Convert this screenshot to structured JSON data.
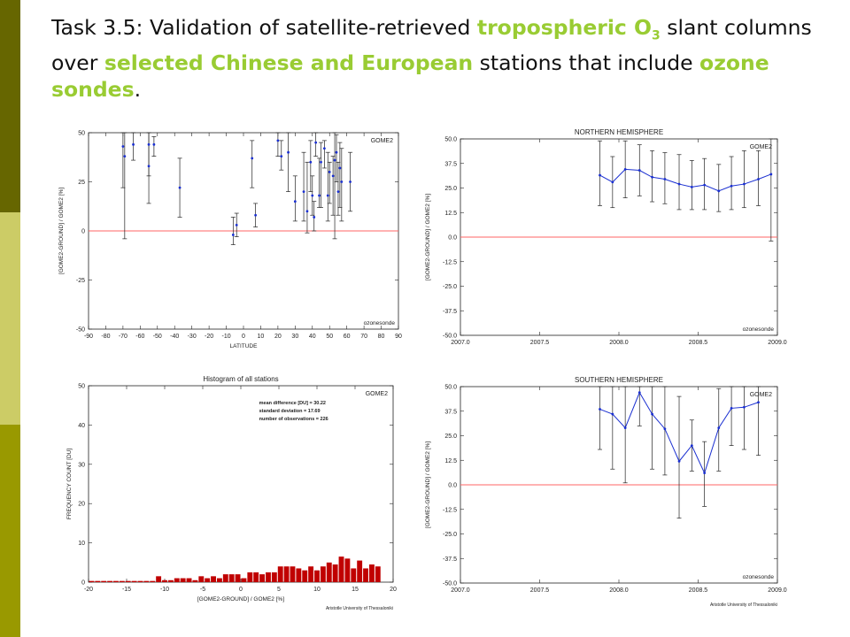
{
  "colors": {
    "band_top": "#666600",
    "band_mid": "#cccc66",
    "band_low": "#999900",
    "highlight": "#99cc33",
    "zero_line": "#ff6666",
    "series_blue": "#1a2fd1",
    "bar_red": "#c00000"
  },
  "header": {
    "part1": "Task 3.5: Validation of satellite-retrieved ",
    "hl1": "tropospheric O",
    "hl1_sub": "3",
    "part2": " slant columns over ",
    "hl2": "selected Chinese and European",
    "part3": " stations that include ",
    "hl3": "ozone sondes",
    "part4": "."
  },
  "chart_data": [
    {
      "type": "scatter",
      "title": "",
      "xlabel": "LATITUDE",
      "ylabel": "[GOME2-GROUND] / GOME2  [%]",
      "xlim": [
        -90,
        90
      ],
      "ylim": [
        -50,
        50
      ],
      "xticks": [
        -90,
        -80,
        -70,
        -60,
        -50,
        -40,
        -30,
        -20,
        -10,
        0,
        10,
        20,
        30,
        40,
        50,
        60,
        70,
        80,
        90
      ],
      "yticks": [
        -50,
        -25,
        0,
        25,
        50
      ],
      "corner_label": "GOME2",
      "footer_label": "ozonesonde",
      "points": [
        {
          "x": -70,
          "y": 43,
          "lo": 22,
          "hi": 55
        },
        {
          "x": -69,
          "y": 38,
          "lo": -4,
          "hi": 55
        },
        {
          "x": -64,
          "y": 44,
          "lo": 36,
          "hi": 52
        },
        {
          "x": -55,
          "y": 33,
          "lo": 14,
          "hi": 55
        },
        {
          "x": -55,
          "y": 44,
          "lo": 28,
          "hi": 55
        },
        {
          "x": -52,
          "y": 44,
          "lo": 38,
          "hi": 48
        },
        {
          "x": -37,
          "y": 22,
          "lo": 7,
          "hi": 37
        },
        {
          "x": -6,
          "y": -2,
          "lo": -7,
          "hi": 7
        },
        {
          "x": -4,
          "y": 3,
          "lo": -3,
          "hi": 9
        },
        {
          "x": 5,
          "y": 37,
          "lo": 22,
          "hi": 46
        },
        {
          "x": 7,
          "y": 8,
          "lo": 2,
          "hi": 14
        },
        {
          "x": 20,
          "y": 46,
          "lo": 38,
          "hi": 50
        },
        {
          "x": 22,
          "y": 38,
          "lo": 31,
          "hi": 46
        },
        {
          "x": 26,
          "y": 40,
          "lo": 20,
          "hi": 52
        },
        {
          "x": 30,
          "y": 15,
          "lo": 5,
          "hi": 28
        },
        {
          "x": 35,
          "y": 20,
          "lo": 5,
          "hi": 40
        },
        {
          "x": 37,
          "y": 10,
          "lo": -1,
          "hi": 35
        },
        {
          "x": 39,
          "y": 35,
          "lo": 20,
          "hi": 46
        },
        {
          "x": 40,
          "y": 18,
          "lo": 8,
          "hi": 28
        },
        {
          "x": 41,
          "y": 7,
          "lo": 0,
          "hi": 15
        },
        {
          "x": 42,
          "y": 45,
          "lo": 38,
          "hi": 53
        },
        {
          "x": 44,
          "y": 18,
          "lo": 12,
          "hi": 37
        },
        {
          "x": 45,
          "y": 35,
          "lo": 12,
          "hi": 45
        },
        {
          "x": 47,
          "y": 42,
          "lo": 32,
          "hi": 46
        },
        {
          "x": 49,
          "y": 18,
          "lo": 5,
          "hi": 40
        },
        {
          "x": 50,
          "y": 30,
          "lo": 14,
          "hi": 35
        },
        {
          "x": 52,
          "y": 28,
          "lo": 8,
          "hi": 38
        },
        {
          "x": 53,
          "y": 36,
          "lo": -4,
          "hi": 52
        },
        {
          "x": 54,
          "y": 40,
          "lo": 25,
          "hi": 49
        },
        {
          "x": 55,
          "y": 20,
          "lo": 8,
          "hi": 35
        },
        {
          "x": 56,
          "y": 32,
          "lo": 12,
          "hi": 45
        },
        {
          "x": 57,
          "y": 25,
          "lo": 5,
          "hi": 42
        },
        {
          "x": 62,
          "y": 25,
          "lo": 10,
          "hi": 40
        }
      ]
    },
    {
      "type": "line",
      "title": "NORTHERN HEMISPHERE",
      "xlabel": "",
      "ylabel": "[GOME2-GROUND] / GOME2  [%]",
      "xlim": [
        2007,
        2009
      ],
      "ylim": [
        -50,
        50
      ],
      "xticks": [
        "2007.0",
        "2007.5",
        "2008.0",
        "2008.5",
        "2009.0"
      ],
      "yticks": [
        "50.0",
        "37.5",
        "25.0",
        "12.5",
        "0.0",
        "-12.5",
        "-25.0",
        "-37.5",
        "-50.0"
      ],
      "corner_label": "GOME2",
      "footer_label": "ozonesonde",
      "points": [
        {
          "x": 2007.88,
          "y": 31.5,
          "lo": 16,
          "hi": 49
        },
        {
          "x": 2007.96,
          "y": 28,
          "lo": 15,
          "hi": 41
        },
        {
          "x": 2008.04,
          "y": 34.5,
          "lo": 20,
          "hi": 49
        },
        {
          "x": 2008.13,
          "y": 34,
          "lo": 21,
          "hi": 47
        },
        {
          "x": 2008.21,
          "y": 30.5,
          "lo": 18,
          "hi": 44
        },
        {
          "x": 2008.29,
          "y": 29.5,
          "lo": 17,
          "hi": 43
        },
        {
          "x": 2008.38,
          "y": 27,
          "lo": 14,
          "hi": 42
        },
        {
          "x": 2008.46,
          "y": 25.5,
          "lo": 14,
          "hi": 39
        },
        {
          "x": 2008.54,
          "y": 26.5,
          "lo": 14,
          "hi": 40
        },
        {
          "x": 2008.63,
          "y": 23.5,
          "lo": 13,
          "hi": 37
        },
        {
          "x": 2008.71,
          "y": 26,
          "lo": 14,
          "hi": 41
        },
        {
          "x": 2008.79,
          "y": 27,
          "lo": 15,
          "hi": 44
        },
        {
          "x": 2008.88,
          "y": 29.5,
          "lo": 16,
          "hi": 44
        },
        {
          "x": 2008.96,
          "y": 32,
          "lo": -2,
          "hi": 50
        }
      ]
    },
    {
      "type": "bar",
      "title": "Histogram of all stations",
      "xlabel": "[GOME2-GROUND] / GOME2  [%]",
      "ylabel": "FREQUENCY COUNT [DU]",
      "xlim": [
        -20,
        20
      ],
      "ylim": [
        0,
        50
      ],
      "xticks": [
        -20,
        -15,
        -10,
        -5,
        0,
        5,
        10,
        15,
        20
      ],
      "yticks": [
        0,
        10,
        20,
        30,
        40,
        50
      ],
      "corner_label": "GOME2",
      "stats": [
        "mean difference [DU] =   30.22",
        "standard deviation  =   17.69",
        "number of observations =   226"
      ],
      "footer_label": "Aristotle University of Thessaloniki",
      "bin_width": 0.8,
      "bins": [
        {
          "x": -19.6,
          "v": 0.3
        },
        {
          "x": -18.8,
          "v": 0.3
        },
        {
          "x": -18.0,
          "v": 0.3
        },
        {
          "x": -17.2,
          "v": 0.3
        },
        {
          "x": -16.4,
          "v": 0.3
        },
        {
          "x": -15.6,
          "v": 0.3
        },
        {
          "x": -14.8,
          "v": 0.3
        },
        {
          "x": -14.0,
          "v": 0.3
        },
        {
          "x": -13.2,
          "v": 0.3
        },
        {
          "x": -12.4,
          "v": 0.3
        },
        {
          "x": -11.6,
          "v": 0.3
        },
        {
          "x": -10.8,
          "v": 1.5
        },
        {
          "x": -10.0,
          "v": 0.5
        },
        {
          "x": -9.2,
          "v": 0.5
        },
        {
          "x": -8.4,
          "v": 1
        },
        {
          "x": -7.6,
          "v": 1
        },
        {
          "x": -6.8,
          "v": 1
        },
        {
          "x": -6.0,
          "v": 0.5
        },
        {
          "x": -5.2,
          "v": 1.5
        },
        {
          "x": -4.4,
          "v": 1
        },
        {
          "x": -3.6,
          "v": 1.5
        },
        {
          "x": -2.8,
          "v": 1
        },
        {
          "x": -2.0,
          "v": 2
        },
        {
          "x": -1.2,
          "v": 2
        },
        {
          "x": -0.4,
          "v": 2
        },
        {
          "x": 0.4,
          "v": 1
        },
        {
          "x": 1.2,
          "v": 2.5
        },
        {
          "x": 2.0,
          "v": 2.5
        },
        {
          "x": 2.8,
          "v": 2
        },
        {
          "x": 3.6,
          "v": 2.5
        },
        {
          "x": 4.4,
          "v": 2.5
        },
        {
          "x": 5.2,
          "v": 4
        },
        {
          "x": 6.0,
          "v": 4
        },
        {
          "x": 6.8,
          "v": 4
        },
        {
          "x": 7.6,
          "v": 3.5
        },
        {
          "x": 8.4,
          "v": 3
        },
        {
          "x": 9.2,
          "v": 4
        },
        {
          "x": 10.0,
          "v": 3
        },
        {
          "x": 10.8,
          "v": 4
        },
        {
          "x": 11.6,
          "v": 5
        },
        {
          "x": 12.4,
          "v": 4.5
        },
        {
          "x": 13.2,
          "v": 6.5
        },
        {
          "x": 14.0,
          "v": 6
        },
        {
          "x": 14.8,
          "v": 3.5
        },
        {
          "x": 15.6,
          "v": 5.5
        },
        {
          "x": 16.4,
          "v": 3.5
        },
        {
          "x": 17.2,
          "v": 4.5
        },
        {
          "x": 18.0,
          "v": 4
        }
      ]
    },
    {
      "type": "line",
      "title": "SOUTHERN HEMISPHERE",
      "xlabel": "",
      "ylabel": "[GOME2-GROUND] / GOME2  [%]",
      "xlim": [
        2007,
        2009
      ],
      "ylim": [
        -50,
        50
      ],
      "xticks": [
        "2007.0",
        "2007.5",
        "2008.0",
        "2008.5",
        "2009.0"
      ],
      "yticks": [
        "50.0",
        "37.5",
        "25.0",
        "12.5",
        "0.0",
        "-12.5",
        "-25.0",
        "-37.5",
        "-50.0"
      ],
      "corner_label": "GOME2",
      "footer_label": "ozonesonde",
      "bottom_note": "Aristotle University of Thessaloniki",
      "points": [
        {
          "x": 2007.88,
          "y": 38.5,
          "lo": 18,
          "hi": 50
        },
        {
          "x": 2007.96,
          "y": 36,
          "lo": 8,
          "hi": 50
        },
        {
          "x": 2008.04,
          "y": 29,
          "lo": 1,
          "hi": 50
        },
        {
          "x": 2008.13,
          "y": 47,
          "lo": 30,
          "hi": 50
        },
        {
          "x": 2008.21,
          "y": 36,
          "lo": 8,
          "hi": 50
        },
        {
          "x": 2008.29,
          "y": 28.5,
          "lo": 5,
          "hi": 50
        },
        {
          "x": 2008.38,
          "y": 12,
          "lo": -17,
          "hi": 45
        },
        {
          "x": 2008.46,
          "y": 20,
          "lo": 7,
          "hi": 33
        },
        {
          "x": 2008.54,
          "y": 6,
          "lo": -11,
          "hi": 22
        },
        {
          "x": 2008.63,
          "y": 29,
          "lo": 7,
          "hi": 49
        },
        {
          "x": 2008.71,
          "y": 39,
          "lo": 20,
          "hi": 50
        },
        {
          "x": 2008.79,
          "y": 39.5,
          "lo": 18,
          "hi": 50
        },
        {
          "x": 2008.88,
          "y": 42,
          "lo": 15,
          "hi": 50
        }
      ]
    }
  ]
}
